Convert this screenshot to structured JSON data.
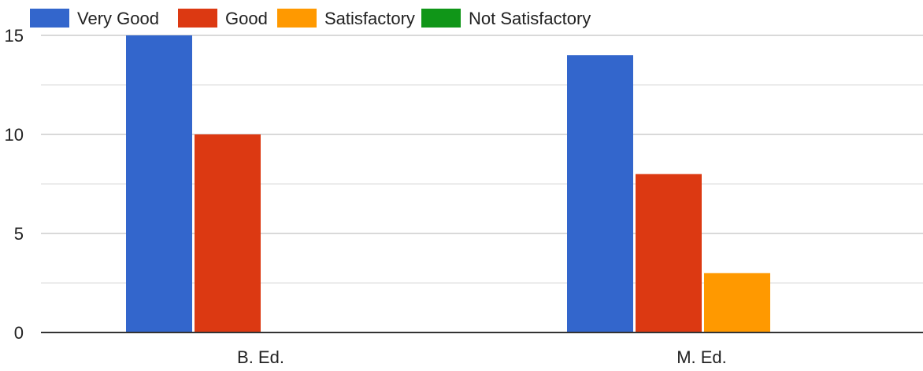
{
  "chart_data": {
    "type": "bar",
    "categories": [
      "B. Ed.",
      "M. Ed."
    ],
    "series": [
      {
        "name": "Very Good",
        "color": "#3366cc",
        "values": [
          15,
          14
        ]
      },
      {
        "name": "Good",
        "color": "#dc3912",
        "values": [
          10,
          8
        ]
      },
      {
        "name": "Satisfactory",
        "color": "#ff9900",
        "values": [
          0,
          3
        ]
      },
      {
        "name": "Not Satisfactory",
        "color": "#109618",
        "values": [
          0,
          0
        ]
      }
    ],
    "yticks": [
      "0",
      "5",
      "10",
      "15"
    ],
    "ylim": [
      0,
      15
    ],
    "grid": true,
    "legend_position": "top-left"
  }
}
